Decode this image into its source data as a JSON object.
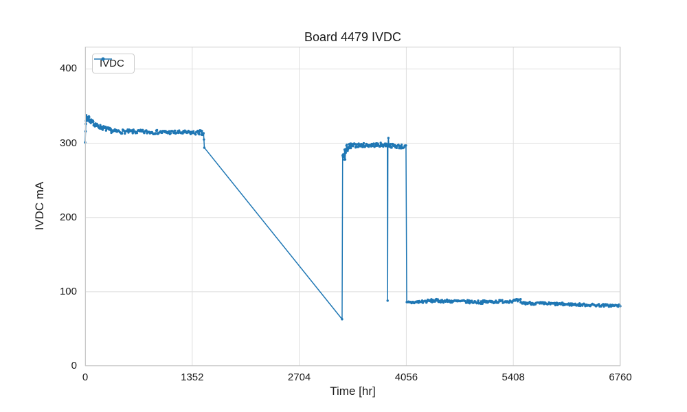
{
  "chart_data": {
    "type": "line",
    "title": "Board 4479 IVDC",
    "xlabel": "Time [hr]",
    "ylabel": "IVDC mA",
    "xlim": [
      0,
      6760
    ],
    "ylim": [
      0,
      430
    ],
    "xticks": [
      0,
      1352,
      2704,
      4056,
      5408,
      6760
    ],
    "yticks": [
      0,
      100,
      200,
      300,
      400
    ],
    "grid": true,
    "legend_position": "upper left",
    "colors": {
      "line": "#1f77b4",
      "grid": "#dedede",
      "spine": "#c8c8c8",
      "text": "#1a1a1a",
      "background": "#ffffff"
    },
    "series": [
      {
        "name": "IVDC",
        "color": "#1f77b4",
        "marker": "dot",
        "keypoints": [
          [
            0,
            301
          ],
          [
            10,
            335
          ],
          [
            130,
            324
          ],
          [
            330,
            317
          ],
          [
            1440,
            315
          ],
          [
            1505,
            294
          ],
          [
            3245,
            63
          ],
          [
            3260,
            280
          ],
          [
            3400,
            297
          ],
          [
            3820,
            88
          ],
          [
            3830,
            307
          ],
          [
            4052,
            295
          ],
          [
            4062,
            86
          ],
          [
            5000,
            86
          ],
          [
            5500,
            88
          ],
          [
            6760,
            81
          ]
        ],
        "segments": [
          {
            "type": "points",
            "pts": [
              [
                0,
                301
              ],
              [
                5,
                316
              ],
              [
                8,
                326
              ]
            ]
          },
          {
            "type": "noisy",
            "x0": 10,
            "x1": 55,
            "y0": 334,
            "y1": 332,
            "amp": 4,
            "step": 2
          },
          {
            "type": "noisy",
            "x0": 55,
            "x1": 130,
            "y0": 331,
            "y1": 325,
            "amp": 3,
            "step": 4
          },
          {
            "type": "noisy",
            "x0": 130,
            "x1": 330,
            "y0": 324,
            "y1": 317,
            "amp": 3,
            "step": 6
          },
          {
            "type": "noisy",
            "x0": 330,
            "x1": 1440,
            "y0": 316,
            "y1": 314,
            "amp": 2.8,
            "step": 9
          },
          {
            "type": "noisy",
            "x0": 1440,
            "x1": 1495,
            "y0": 315,
            "y1": 312,
            "amp": 3.5,
            "step": 5
          },
          {
            "type": "points",
            "pts": [
              [
                1500,
                305
              ],
              [
                1505,
                294
              ]
            ]
          },
          {
            "type": "points",
            "pts": [
              [
                3245,
                63
              ]
            ]
          },
          {
            "type": "noisy",
            "x0": 3252,
            "x1": 3300,
            "y0": 278,
            "y1": 290,
            "amp": 11,
            "step": 4
          },
          {
            "type": "noisy",
            "x0": 3300,
            "x1": 3360,
            "y0": 293,
            "y1": 296,
            "amp": 5,
            "step": 5
          },
          {
            "type": "noisy",
            "x0": 3360,
            "x1": 3812,
            "y0": 297,
            "y1": 298,
            "amp": 2.8,
            "step": 8
          },
          {
            "type": "points",
            "pts": [
              [
                3816,
                296
              ],
              [
                3820,
                88
              ],
              [
                3824,
                297
              ],
              [
                3830,
                307
              ],
              [
                3836,
                298
              ]
            ]
          },
          {
            "type": "noisy",
            "x0": 3840,
            "x1": 4052,
            "y0": 297,
            "y1": 295,
            "amp": 2.8,
            "step": 8
          },
          {
            "type": "points",
            "pts": [
              [
                4062,
                86
              ]
            ]
          },
          {
            "type": "noisy",
            "x0": 4068,
            "x1": 4400,
            "y0": 85,
            "y1": 88,
            "amp": 2.2,
            "step": 9
          },
          {
            "type": "noisy",
            "x0": 4400,
            "x1": 5000,
            "y0": 88,
            "y1": 86,
            "amp": 2.2,
            "step": 9
          },
          {
            "type": "noisy",
            "x0": 5000,
            "x1": 5500,
            "y0": 86,
            "y1": 88,
            "amp": 2.2,
            "step": 9
          },
          {
            "type": "noisy",
            "x0": 5500,
            "x1": 6100,
            "y0": 85,
            "y1": 83,
            "amp": 2.0,
            "step": 9
          },
          {
            "type": "noisy",
            "x0": 6100,
            "x1": 6760,
            "y0": 83,
            "y1": 81,
            "amp": 1.8,
            "step": 9
          }
        ]
      }
    ]
  }
}
